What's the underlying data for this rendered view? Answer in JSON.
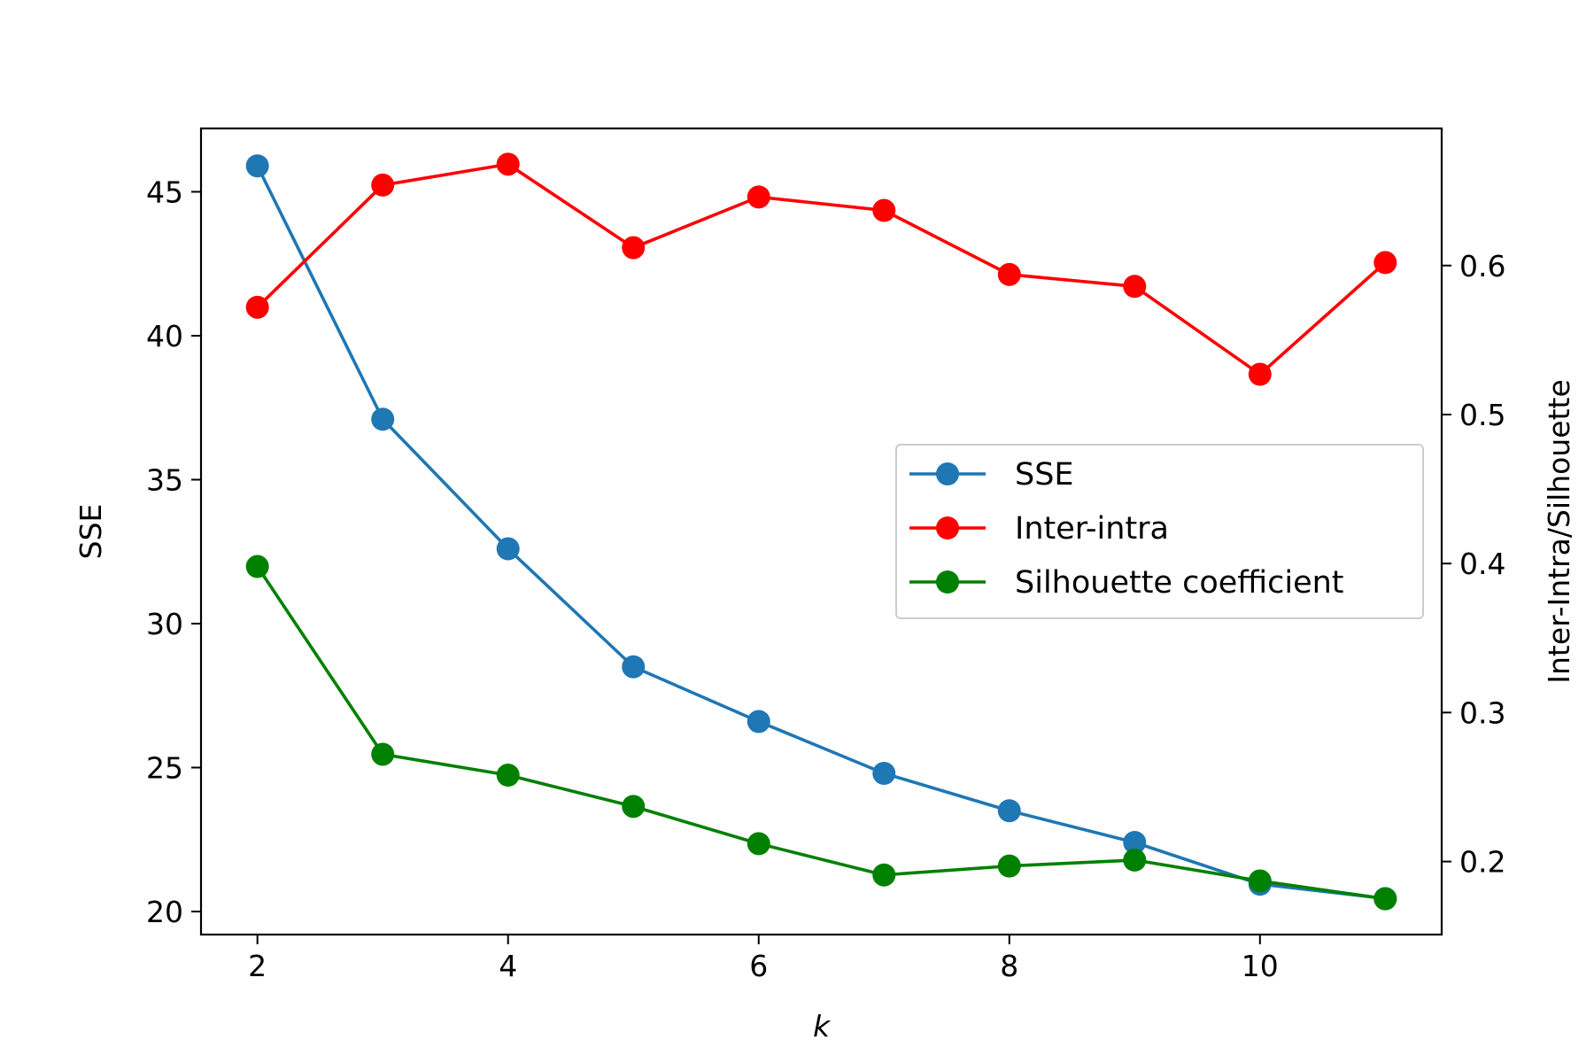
{
  "chart_data": {
    "type": "line",
    "title": "",
    "xlabel": "k",
    "ylabel": "SSE",
    "y2label": "Inter-Intra/Silhouette",
    "grid": false,
    "legend_placement": "center-right",
    "x": [
      2,
      3,
      4,
      5,
      6,
      7,
      8,
      9,
      10,
      11
    ],
    "xlim": [
      1.55,
      11.45
    ],
    "xticks": [
      "2",
      "4",
      "6",
      "8",
      "10"
    ],
    "ylim": [
      19.2,
      47.2
    ],
    "yticks": [
      "20",
      "25",
      "30",
      "35",
      "40",
      "45"
    ],
    "y2lim": [
      0.151,
      0.692
    ],
    "y2ticks": [
      "0.2",
      "0.3",
      "0.4",
      "0.5",
      "0.6"
    ],
    "series": [
      {
        "name": "SSE",
        "axis": "left",
        "color": "#1f77b4",
        "marker": "circle",
        "values": [
          45.9,
          37.1,
          32.6,
          28.5,
          26.6,
          24.8,
          23.5,
          22.4,
          20.95,
          20.45
        ]
      },
      {
        "name": "Inter-intra",
        "axis": "right",
        "color": "#ff0000",
        "marker": "circle",
        "values": [
          0.572,
          0.654,
          0.668,
          0.612,
          0.646,
          0.637,
          0.594,
          0.586,
          0.527,
          0.602
        ]
      },
      {
        "name": "Silhouette coefficient",
        "axis": "right",
        "color": "#008000",
        "marker": "circle",
        "values": [
          0.398,
          0.272,
          0.258,
          0.237,
          0.212,
          0.191,
          0.197,
          0.201,
          0.187,
          0.175
        ]
      }
    ]
  }
}
